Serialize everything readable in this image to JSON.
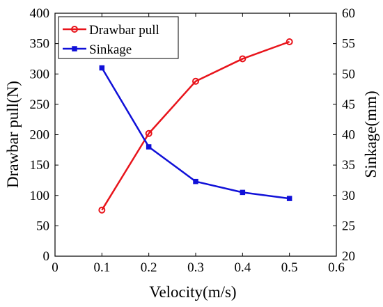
{
  "chart_data": {
    "type": "line",
    "title": "",
    "xlabel": "Velocity(m/s)",
    "ylabel_left": "Drawbar pull(N)",
    "ylabel_right": "Sinkage(mm)",
    "x": [
      0.1,
      0.2,
      0.3,
      0.4,
      0.5
    ],
    "xlim": [
      0,
      0.6
    ],
    "ylim_left": [
      0,
      400
    ],
    "ylim_right": [
      20,
      60
    ],
    "xticks": [
      "0",
      "0.1",
      "0.2",
      "0.3",
      "0.4",
      "0.5",
      "0.6"
    ],
    "yticks_left": [
      "0",
      "50",
      "100",
      "150",
      "200",
      "250",
      "300",
      "350",
      "400"
    ],
    "yticks_right": [
      "20",
      "25",
      "30",
      "35",
      "40",
      "45",
      "50",
      "55",
      "60"
    ],
    "grid": false,
    "legend_position": "top-left",
    "series": [
      {
        "name": "Drawbar pull",
        "axis": "left",
        "color": "#e8141b",
        "marker": "circle",
        "values": [
          76,
          202,
          288,
          325,
          353
        ]
      },
      {
        "name": "Sinkage",
        "axis": "right",
        "color": "#1010d8",
        "marker": "square",
        "values": [
          51.0,
          38.0,
          32.3,
          30.5,
          29.5
        ]
      }
    ]
  }
}
